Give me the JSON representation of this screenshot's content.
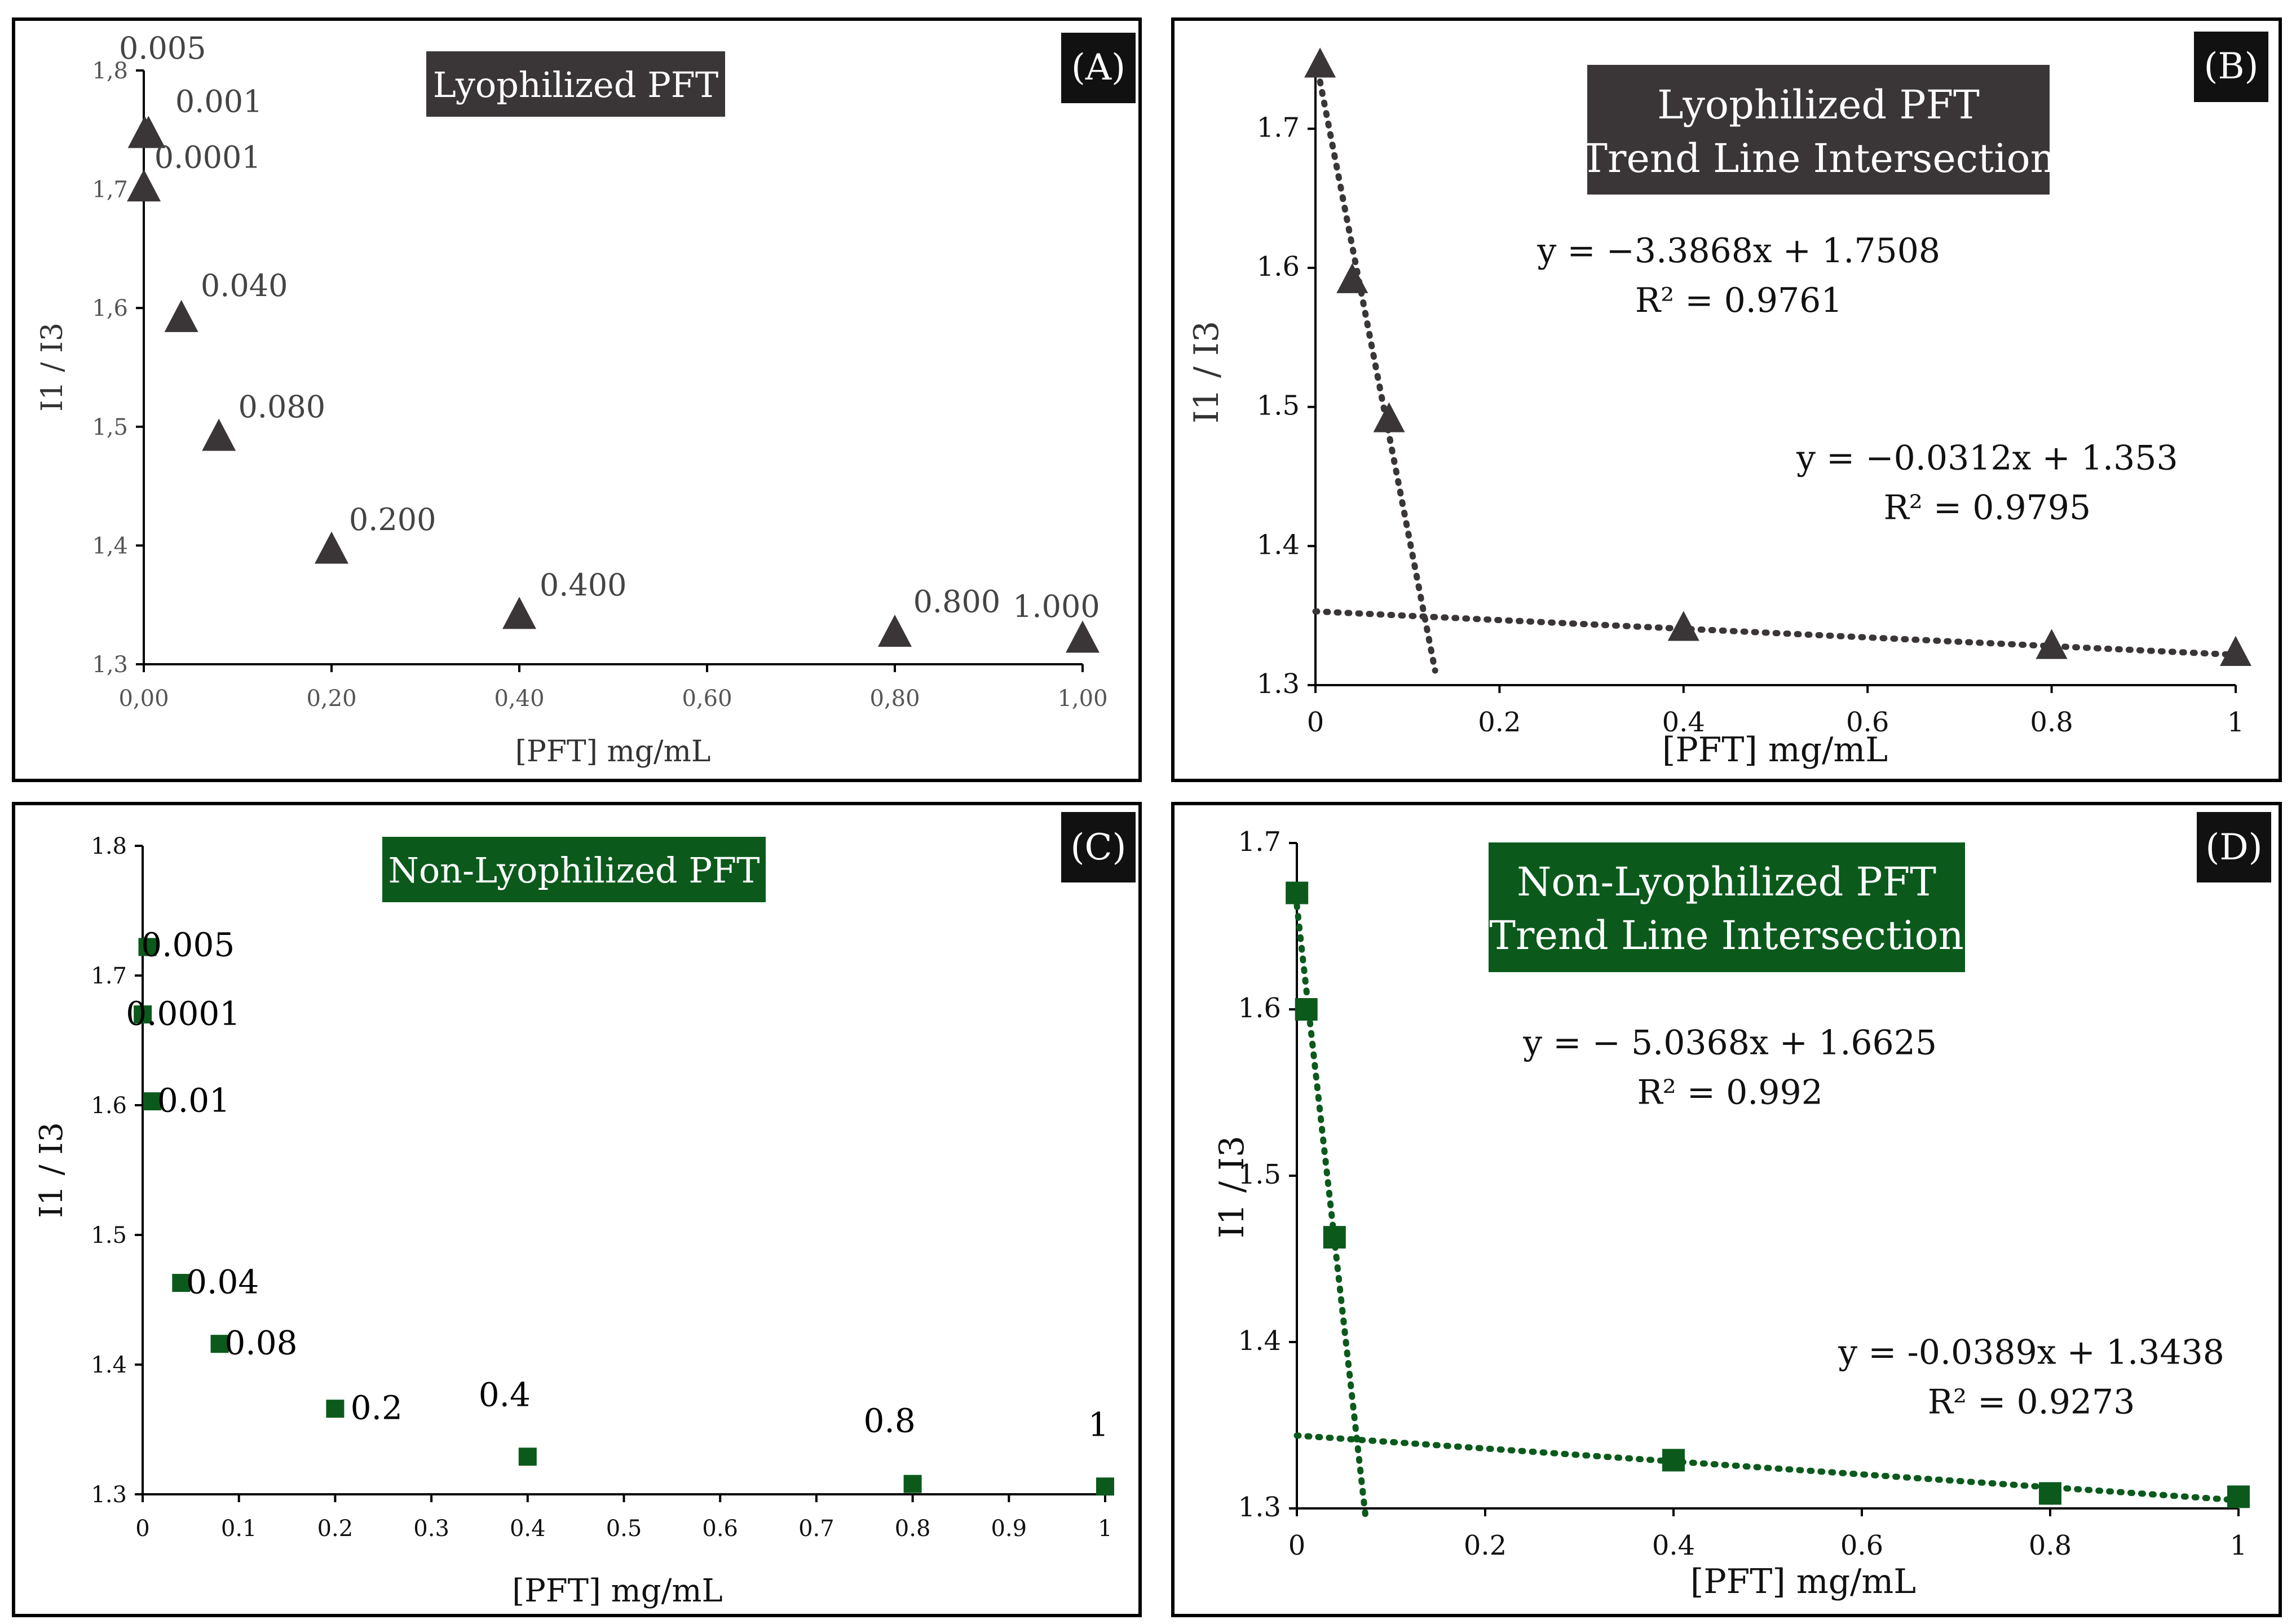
{
  "colors": {
    "lyophilized": "#3a3637",
    "nonlyophilized": "#0b5a1c",
    "badge": "#111111",
    "tick": "#555555"
  },
  "chart_data": [
    {
      "panel": "(A)",
      "type": "scatter",
      "title": "Lyophilized PFT",
      "xlabel": "[PFT] mg/mL",
      "ylabel": "I1 / I3",
      "xlim": [
        0,
        1
      ],
      "ylim": [
        1.3,
        1.8
      ],
      "xticks": [
        0,
        0.2,
        0.4,
        0.6,
        0.8,
        1.0
      ],
      "xtick_labels": [
        "0,00",
        "0,20",
        "0,40",
        "0,60",
        "0,80",
        "1,00"
      ],
      "yticks": [
        1.3,
        1.4,
        1.5,
        1.6,
        1.7,
        1.8
      ],
      "ytick_labels": [
        "1,3",
        "1,4",
        "1,5",
        "1,6",
        "1,7",
        "1,8"
      ],
      "marker": "triangle",
      "series": [
        {
          "name": "Lyophilized PFT",
          "x": [
            0.0001,
            0.001,
            0.005,
            0.04,
            0.08,
            0.2,
            0.4,
            0.8,
            1.0
          ],
          "y": [
            1.7,
            1.745,
            1.745,
            1.59,
            1.49,
            1.395,
            1.34,
            1.325,
            1.32
          ]
        }
      ],
      "point_labels": [
        {
          "text": "0.005",
          "x": 0.02,
          "y": 1.81
        },
        {
          "text": "0.001",
          "x": 0.08,
          "y": 1.765
        },
        {
          "text": "0.0001",
          "x": 0.068,
          "y": 1.718
        },
        {
          "text": "0.040",
          "x": 0.107,
          "y": 1.61
        },
        {
          "text": "0.080",
          "x": 0.147,
          "y": 1.508
        },
        {
          "text": "0.200",
          "x": 0.265,
          "y": 1.413
        },
        {
          "text": "0.400",
          "x": 0.468,
          "y": 1.358
        },
        {
          "text": "0.800",
          "x": 0.866,
          "y": 1.344
        },
        {
          "text": "1.000",
          "x": 0.972,
          "y": 1.34
        }
      ]
    },
    {
      "panel": "(B)",
      "type": "scatter",
      "title_lines": [
        "Lyophilized PFT",
        "Trend Line Intersection"
      ],
      "xlabel": "[PFT] mg/mL",
      "ylabel": "I1 / I3",
      "xlim": [
        0,
        1
      ],
      "ylim": [
        1.3,
        1.75
      ],
      "xticks": [
        0,
        0.2,
        0.4,
        0.6,
        0.8,
        1
      ],
      "xtick_labels": [
        "0",
        "0.2",
        "0.4",
        "0.6",
        "0.8",
        "1"
      ],
      "yticks": [
        1.3,
        1.4,
        1.5,
        1.6,
        1.7
      ],
      "ytick_labels": [
        "1.3",
        "1.4",
        "1.5",
        "1.6",
        "1.7"
      ],
      "marker": "triangle",
      "series": [
        {
          "name": "Lyophilized PFT",
          "x": [
            0.005,
            0.04,
            0.08,
            0.4,
            0.8,
            1.0
          ],
          "y": [
            1.745,
            1.59,
            1.49,
            1.34,
            1.327,
            1.322
          ]
        }
      ],
      "trendlines": [
        {
          "slope": -3.3868,
          "intercept": 1.7508,
          "x_range": [
            0.005,
            0.13
          ]
        },
        {
          "slope": -0.0312,
          "intercept": 1.353,
          "x_range": [
            0,
            1
          ]
        }
      ],
      "equations": [
        {
          "eq": "y = −3.3868x + 1.7508",
          "r2": "R² = 0.9761",
          "x": 0.46,
          "y": 1.604
        },
        {
          "eq": "y = −0.0312x + 1.353",
          "r2": "R² = 0.9795",
          "x": 0.73,
          "y": 1.455
        }
      ]
    },
    {
      "panel": "(C)",
      "type": "scatter",
      "title": "Non-Lyophilized PFT",
      "xlabel": "[PFT] mg/mL",
      "ylabel": "I1 / I3",
      "xlim": [
        0,
        1
      ],
      "ylim": [
        1.3,
        1.8
      ],
      "xticks": [
        0,
        0.1,
        0.2,
        0.3,
        0.4,
        0.5,
        0.6,
        0.7,
        0.8,
        0.9,
        1
      ],
      "xtick_labels": [
        "0",
        "0.1",
        "0.2",
        "0.3",
        "0.4",
        "0.5",
        "0.6",
        "0.7",
        "0.8",
        "0.9",
        "1"
      ],
      "yticks": [
        1.3,
        1.4,
        1.5,
        1.6,
        1.7,
        1.8
      ],
      "ytick_labels": [
        "1.3",
        "1.4",
        "1.5",
        "1.6",
        "1.7",
        "1.8"
      ],
      "marker": "square",
      "series": [
        {
          "name": "Non-Lyophilized PFT",
          "x": [
            0.0001,
            0.005,
            0.01,
            0.04,
            0.08,
            0.2,
            0.4,
            0.8,
            1.0
          ],
          "y": [
            1.67,
            1.722,
            1.603,
            1.463,
            1.416,
            1.366,
            1.329,
            1.308,
            1.306
          ]
        }
      ],
      "point_labels": [
        {
          "text": "0.005",
          "x": 0.047,
          "y": 1.715
        },
        {
          "text": "0.0001",
          "x": 0.042,
          "y": 1.662
        },
        {
          "text": "0.01",
          "x": 0.053,
          "y": 1.595
        },
        {
          "text": "0.04",
          "x": 0.083,
          "y": 1.455
        },
        {
          "text": "0.08",
          "x": 0.123,
          "y": 1.408
        },
        {
          "text": "0.2",
          "x": 0.243,
          "y": 1.358
        },
        {
          "text": "0.4",
          "x": 0.376,
          "y": 1.368
        },
        {
          "text": "0.8",
          "x": 0.776,
          "y": 1.348
        },
        {
          "text": "1",
          "x": 0.993,
          "y": 1.345
        }
      ]
    },
    {
      "panel": "(D)",
      "type": "scatter",
      "title_lines": [
        "Non-Lyophilized PFT",
        "Trend Line Intersection"
      ],
      "xlabel": "[PFT] mg/mL",
      "ylabel": "I1 / I3",
      "xlim": [
        0,
        1
      ],
      "ylim": [
        1.3,
        1.7
      ],
      "xticks": [
        0,
        0.2,
        0.4,
        0.6,
        0.8,
        1
      ],
      "xtick_labels": [
        "0",
        "0.2",
        "0.4",
        "0.6",
        "0.8",
        "1"
      ],
      "yticks": [
        1.3,
        1.4,
        1.5,
        1.6,
        1.7
      ],
      "ytick_labels": [
        "1.3",
        "1.4",
        "1.5",
        "1.6",
        "1.7"
      ],
      "marker": "square",
      "series": [
        {
          "name": "Non-Lyophilized PFT",
          "x": [
            0.0001,
            0.01,
            0.04,
            0.4,
            0.8,
            1.0
          ],
          "y": [
            1.67,
            1.6,
            1.463,
            1.329,
            1.309,
            1.307
          ]
        }
      ],
      "trendlines": [
        {
          "slope": -5.0368,
          "intercept": 1.6625,
          "x_range": [
            0,
            0.073
          ]
        },
        {
          "slope": -0.0389,
          "intercept": 1.3438,
          "x_range": [
            0,
            1
          ]
        }
      ],
      "equations": [
        {
          "eq": "y = − 5.0368x + 1.6625",
          "r2": "R² = 0.992",
          "x": 0.46,
          "y": 1.573
        },
        {
          "eq": "y = -0.0389x + 1.3438",
          "r2": "R² = 0.9273",
          "x": 0.78,
          "y": 1.387
        }
      ]
    }
  ]
}
